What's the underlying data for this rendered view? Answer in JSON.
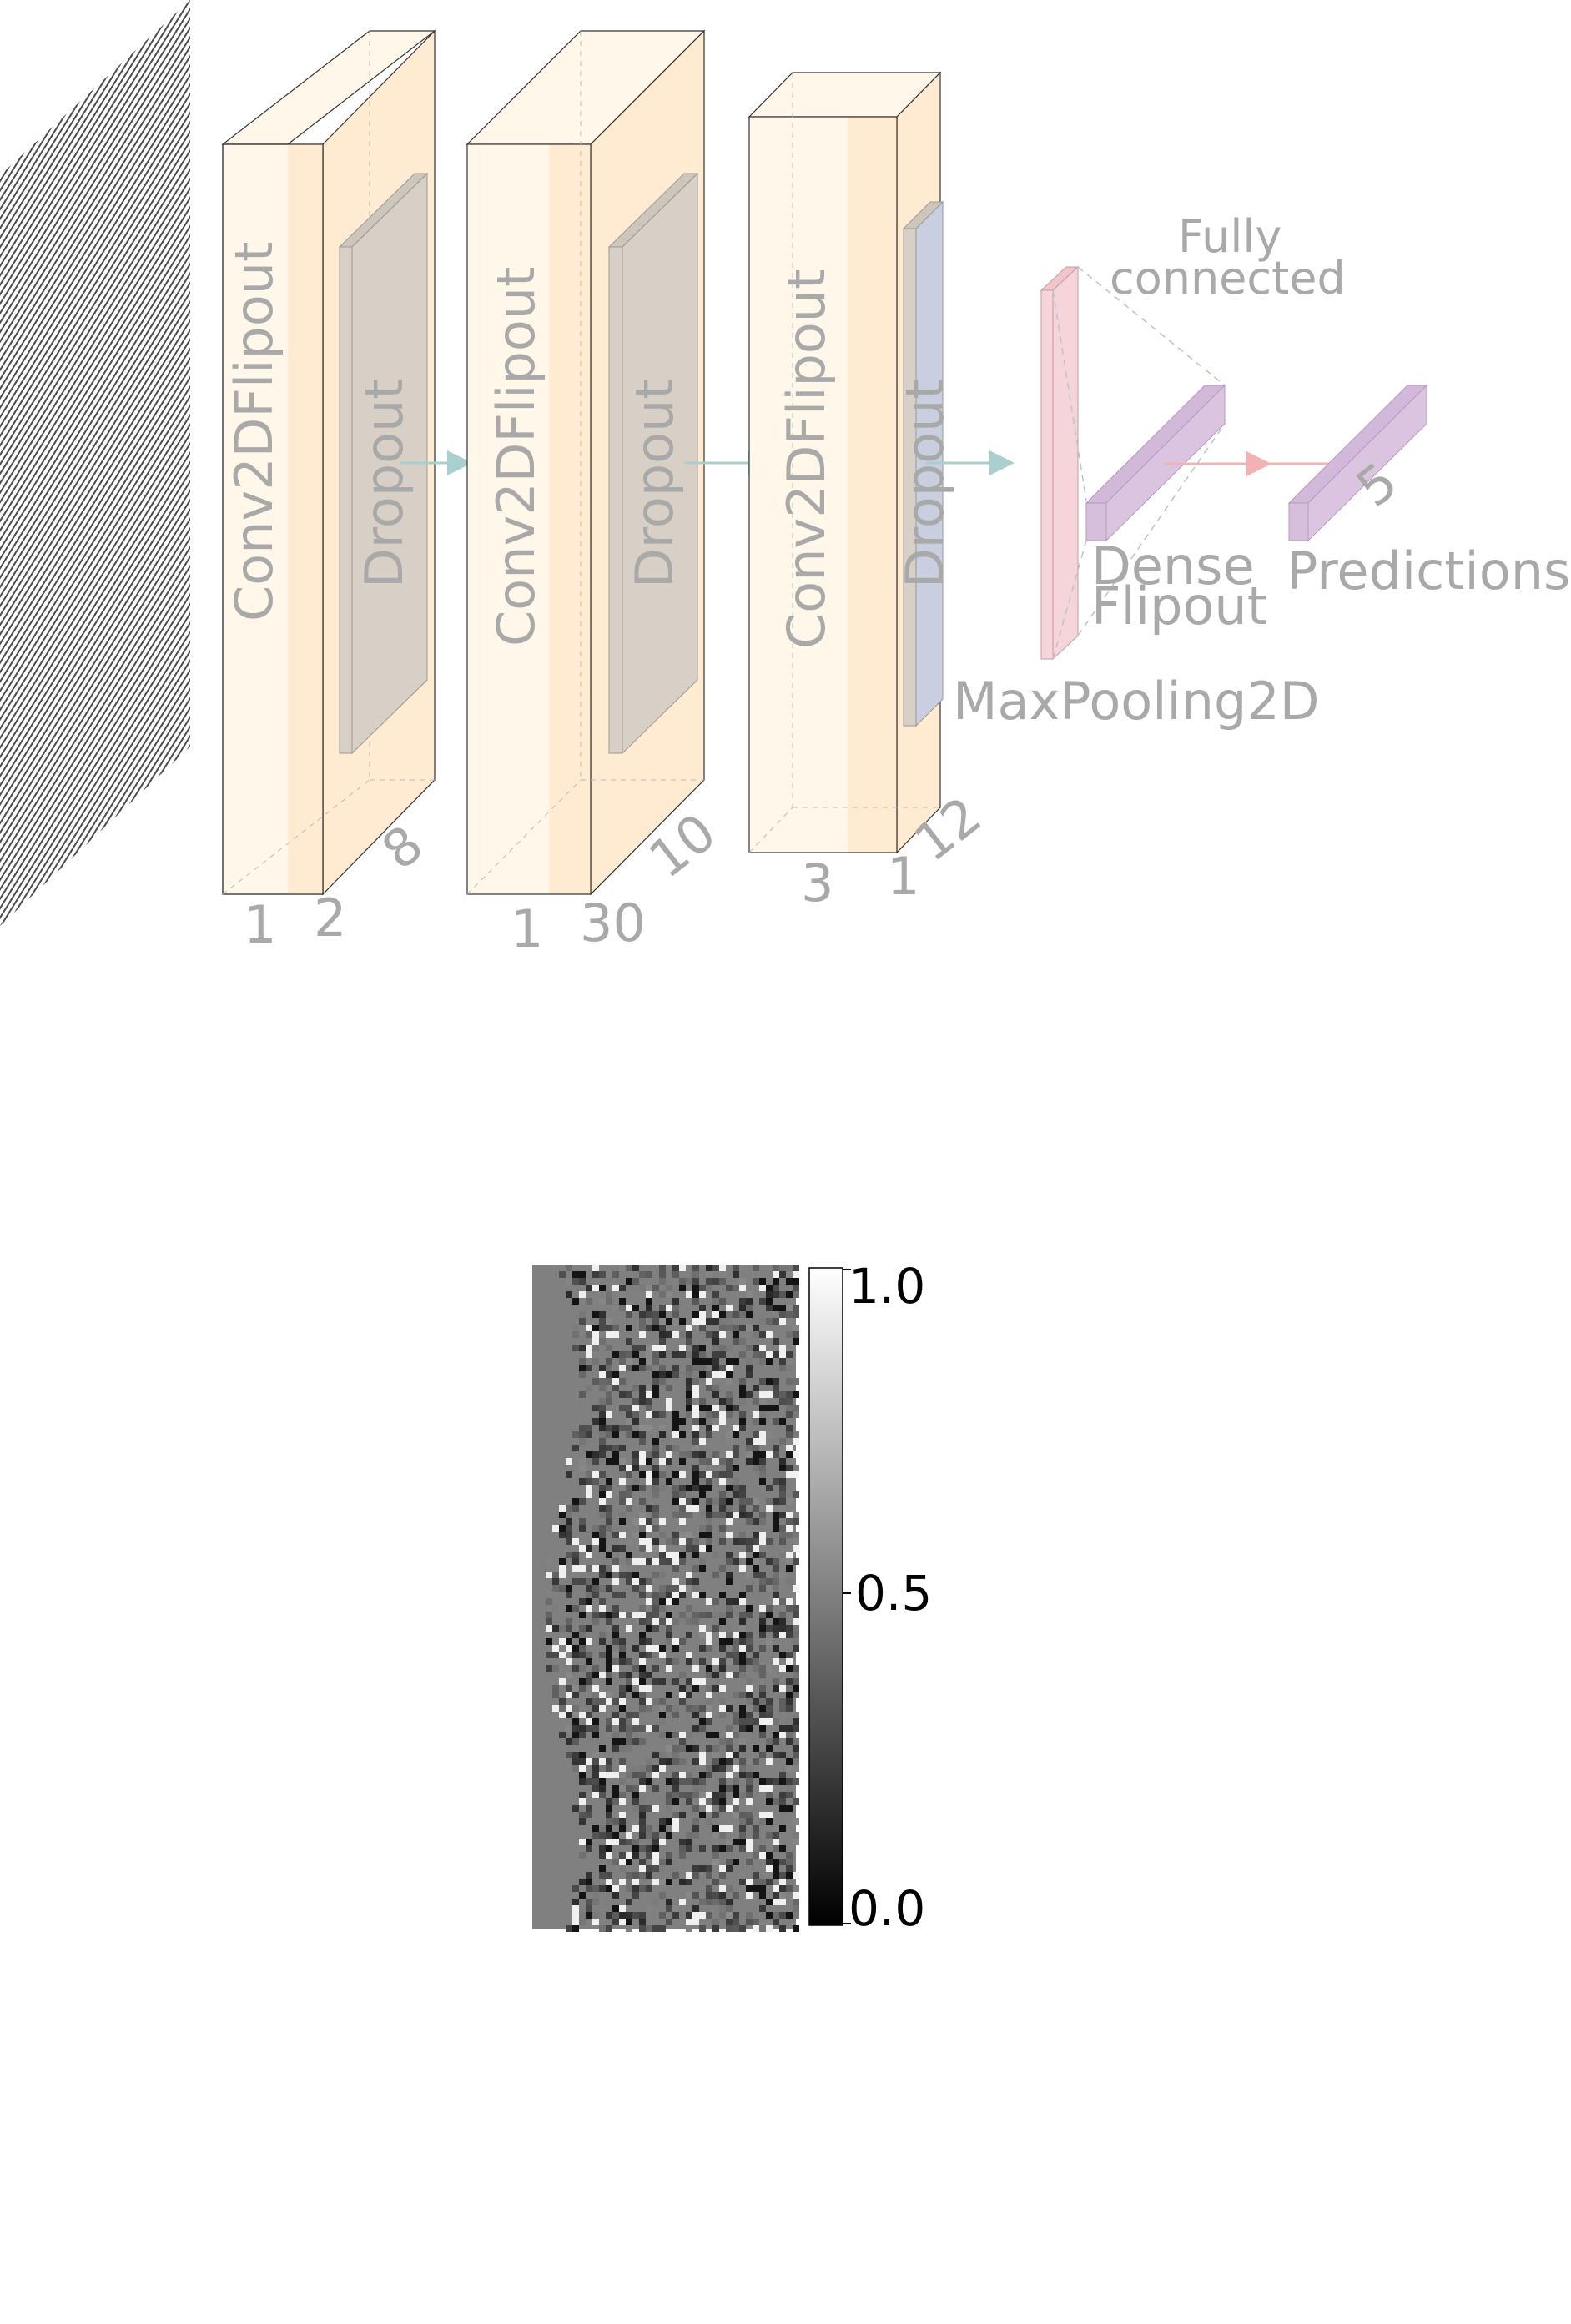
{
  "diagram": {
    "blocks": [
      {
        "conv_label": "Conv2DFlipout",
        "dropout_label": "Dropout",
        "dim_a": "1",
        "dim_b": "2",
        "dim_depth": "8"
      },
      {
        "conv_label": "Conv2DFlipout",
        "dropout_label": "Dropout",
        "dim_a": "1",
        "dim_b": "30",
        "dim_depth": "10"
      },
      {
        "conv_label": "Conv2DFlipout",
        "dropout_label": "Dropout",
        "dim_a": "3",
        "dim_b": "1",
        "dim_depth": "12"
      }
    ],
    "maxpool_label": "MaxPooling2D",
    "fully_connected_line1": "Fully",
    "fully_connected_line2": "connected",
    "dense_line1": "Dense",
    "dense_line2": "Flipout",
    "predictions_label": "Predictions",
    "predictions_dim": "5"
  },
  "colorbar": {
    "ticks": [
      "1.0",
      "0.5",
      "0.0"
    ]
  },
  "colors": {
    "conv_light": "#fff8ea",
    "conv_mid": "#feebd1",
    "dropout": "#d8d0c6",
    "maxpool": "#f5d5da",
    "dense": "#dbc4e0",
    "label": "#a9a9a9",
    "arrow_teal": "#a9cfcf",
    "arrow_red": "#f3b2b2"
  }
}
